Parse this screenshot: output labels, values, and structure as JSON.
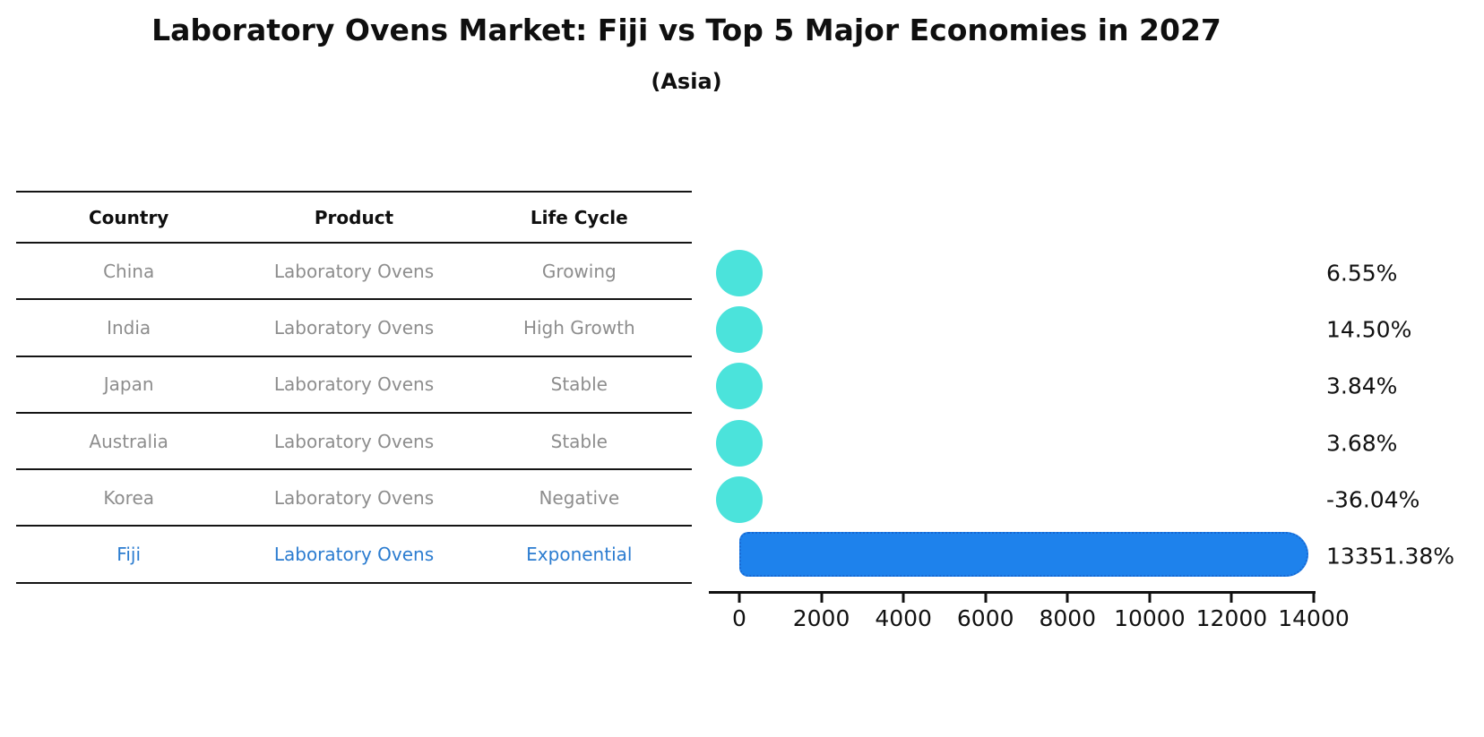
{
  "title": "Laboratory Ovens Market: Fiji vs Top 5 Major Economies in 2027",
  "subtitle": "(Asia)",
  "table": {
    "headers": [
      "Country",
      "Product",
      "Life Cycle"
    ],
    "rows": [
      {
        "country": "China",
        "product": "Laboratory Ovens",
        "life_cycle": "Growing",
        "highlight": false
      },
      {
        "country": "India",
        "product": "Laboratory Ovens",
        "life_cycle": "High Growth",
        "highlight": false
      },
      {
        "country": "Japan",
        "product": "Laboratory Ovens",
        "life_cycle": "Stable",
        "highlight": false
      },
      {
        "country": "Australia",
        "product": "Laboratory Ovens",
        "life_cycle": "Stable",
        "highlight": false
      },
      {
        "country": "Korea",
        "product": "Laboratory Ovens",
        "life_cycle": "Negative",
        "highlight": false
      },
      {
        "country": "Fiji",
        "product": "Laboratory Ovens",
        "life_cycle": "Exponential",
        "highlight": true
      }
    ]
  },
  "chart_data": {
    "type": "bar",
    "orientation": "horizontal",
    "title": "Laboratory Ovens Market: Fiji vs Top 5 Major Economies in 2027",
    "subtitle": "(Asia)",
    "categories": [
      "China",
      "India",
      "Japan",
      "Australia",
      "Korea",
      "Fiji"
    ],
    "values": [
      6.55,
      14.5,
      3.84,
      3.68,
      -36.04,
      13351.38
    ],
    "value_labels": [
      "6.55%",
      "14.50%",
      "3.84%",
      "3.68%",
      "-36.04%",
      "13351.38%"
    ],
    "xlim": [
      0,
      14000
    ],
    "x_ticks": [
      0,
      2000,
      4000,
      6000,
      8000,
      10000,
      12000,
      14000
    ],
    "highlight_category": "Fiji",
    "grid": false,
    "legend": false,
    "colors": {
      "dot": "#4be3db",
      "bar_fill": "#1e82ec",
      "bar_border": "#1868d2",
      "highlight_text": "#2b7cd0",
      "muted_text": "#8d8d8d",
      "axis_text": "#111111"
    }
  }
}
